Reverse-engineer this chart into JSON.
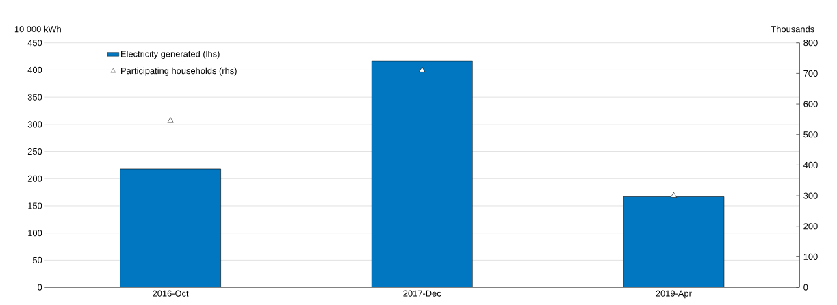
{
  "chart_data": {
    "type": "bar",
    "ylabel": "10 000 kWh",
    "y2label": "Thousands",
    "categories": [
      "2016-Oct",
      "2017-Dec",
      "2019-Apr"
    ],
    "series": [
      {
        "name": "Electricity generated (lhs)",
        "color": "#0077c0",
        "values": [
          218,
          417,
          167
        ]
      },
      {
        "name": "Participating households (rhs)",
        "type": "scatter",
        "axis": "y2",
        "marker": "triangle",
        "color": "#ffffff",
        "values": [
          545,
          710,
          300
        ]
      }
    ],
    "ylim": [
      0,
      450
    ],
    "yticks": [
      0,
      50,
      100,
      150,
      200,
      250,
      300,
      350,
      400,
      450
    ],
    "y2lim": [
      0,
      800
    ],
    "y2ticks": [
      0,
      100,
      200,
      300,
      400,
      500,
      600,
      700,
      800
    ],
    "grid": "y",
    "legend": "top left"
  }
}
